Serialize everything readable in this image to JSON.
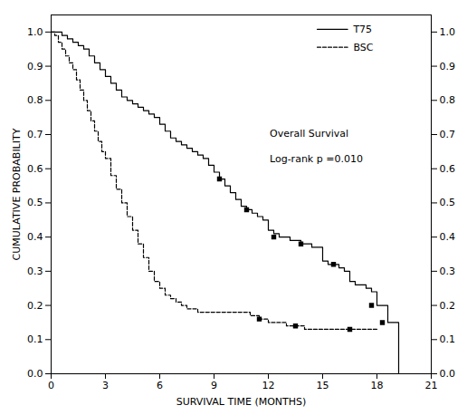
{
  "chart_data": {
    "type": "step",
    "title": "",
    "xlabel": "SURVIVAL TIME (MONTHS)",
    "ylabel": "CUMULATIVE PROBABILITY",
    "annotations": [
      "Overall Survival",
      "Log-rank p =0.010"
    ],
    "xlim": [
      0,
      21
    ],
    "ylim": [
      0.0,
      1.05
    ],
    "xticks": [
      0,
      3,
      6,
      9,
      12,
      15,
      18,
      21
    ],
    "yticks": [
      {
        "value": 0.0,
        "label": "0.0"
      },
      0.1,
      0.2,
      0.3,
      0.4,
      0.5,
      0.6,
      0.7,
      0.8,
      0.9,
      {
        "value": 1.0,
        "label": "1.0"
      }
    ],
    "y2lim": [
      0.0,
      1.05
    ],
    "y2ticks": [
      {
        "value": 0.0,
        "label": "0.0"
      },
      0.1,
      0.2,
      0.3,
      0.4,
      0.5,
      0.6,
      0.7,
      0.8,
      0.9,
      {
        "value": 1.0,
        "label": "1.0"
      }
    ],
    "grid": false,
    "legend": "upper right",
    "series": [
      {
        "name": "T75",
        "color": "#000000",
        "line_style": "solid",
        "marker": "square",
        "x": [
          0,
          0.3,
          0.6,
          0.9,
          1.2,
          1.5,
          1.8,
          2.1,
          2.4,
          2.7,
          3.0,
          3.3,
          3.6,
          3.9,
          4.2,
          4.5,
          4.8,
          5.1,
          5.4,
          5.7,
          6.0,
          6.3,
          6.6,
          6.9,
          7.2,
          7.5,
          7.8,
          8.1,
          8.4,
          8.7,
          9.0,
          9.3,
          9.6,
          9.9,
          10.2,
          10.5,
          10.8,
          11.1,
          11.4,
          11.7,
          12.0,
          12.3,
          12.6,
          12.9,
          13.2,
          13.5,
          13.8,
          14.1,
          14.4,
          14.7,
          15.0,
          15.3,
          15.6,
          15.9,
          16.2,
          16.5,
          16.8,
          17.1,
          17.4,
          17.7,
          18.0,
          18.3,
          18.6,
          18.9,
          19.2
        ],
        "values": [
          1.0,
          1.0,
          0.99,
          0.98,
          0.97,
          0.96,
          0.95,
          0.93,
          0.91,
          0.89,
          0.87,
          0.85,
          0.83,
          0.81,
          0.8,
          0.79,
          0.78,
          0.77,
          0.76,
          0.75,
          0.73,
          0.71,
          0.69,
          0.68,
          0.67,
          0.66,
          0.65,
          0.64,
          0.63,
          0.61,
          0.59,
          0.57,
          0.55,
          0.53,
          0.51,
          0.49,
          0.48,
          0.47,
          0.46,
          0.45,
          0.42,
          0.41,
          0.4,
          0.4,
          0.39,
          0.39,
          0.38,
          0.38,
          0.37,
          0.37,
          0.33,
          0.32,
          0.32,
          0.31,
          0.3,
          0.27,
          0.26,
          0.26,
          0.25,
          0.24,
          0.2,
          0.2,
          0.15,
          0.15,
          0.0
        ],
        "censor_x": [
          9.3,
          10.8,
          12.3,
          13.8,
          15.6,
          17.7,
          18.3
        ],
        "censor_values": [
          0.57,
          0.48,
          0.4,
          0.38,
          0.32,
          0.2,
          0.15
        ]
      },
      {
        "name": "BSC",
        "color": "#000000",
        "line_style": "dashed",
        "marker": "square",
        "x": [
          0,
          0.2,
          0.4,
          0.6,
          0.8,
          1.0,
          1.2,
          1.4,
          1.6,
          1.8,
          2.0,
          2.2,
          2.4,
          2.6,
          2.8,
          3.0,
          3.3,
          3.6,
          3.9,
          4.2,
          4.5,
          4.8,
          5.1,
          5.4,
          5.7,
          6.0,
          6.3,
          6.6,
          6.9,
          7.2,
          7.5,
          7.8,
          8.1,
          8.4,
          8.7,
          9.0,
          9.5,
          10.0,
          10.5,
          11.0,
          11.5,
          12.0,
          12.5,
          13.0,
          13.5,
          14.0,
          14.5,
          15.0,
          15.5,
          16.0,
          16.5,
          17.0,
          17.5,
          18.0
        ],
        "values": [
          1.0,
          0.99,
          0.97,
          0.95,
          0.93,
          0.91,
          0.89,
          0.86,
          0.83,
          0.8,
          0.77,
          0.74,
          0.71,
          0.68,
          0.65,
          0.63,
          0.58,
          0.54,
          0.5,
          0.46,
          0.42,
          0.38,
          0.34,
          0.3,
          0.27,
          0.25,
          0.23,
          0.22,
          0.21,
          0.2,
          0.19,
          0.19,
          0.18,
          0.18,
          0.18,
          0.18,
          0.18,
          0.18,
          0.18,
          0.17,
          0.16,
          0.15,
          0.15,
          0.14,
          0.14,
          0.13,
          0.13,
          0.13,
          0.13,
          0.13,
          0.13,
          0.13,
          0.13,
          0.13
        ],
        "censor_x": [
          11.5,
          13.5,
          16.5
        ],
        "censor_values": [
          0.16,
          0.14,
          0.13
        ]
      }
    ]
  }
}
